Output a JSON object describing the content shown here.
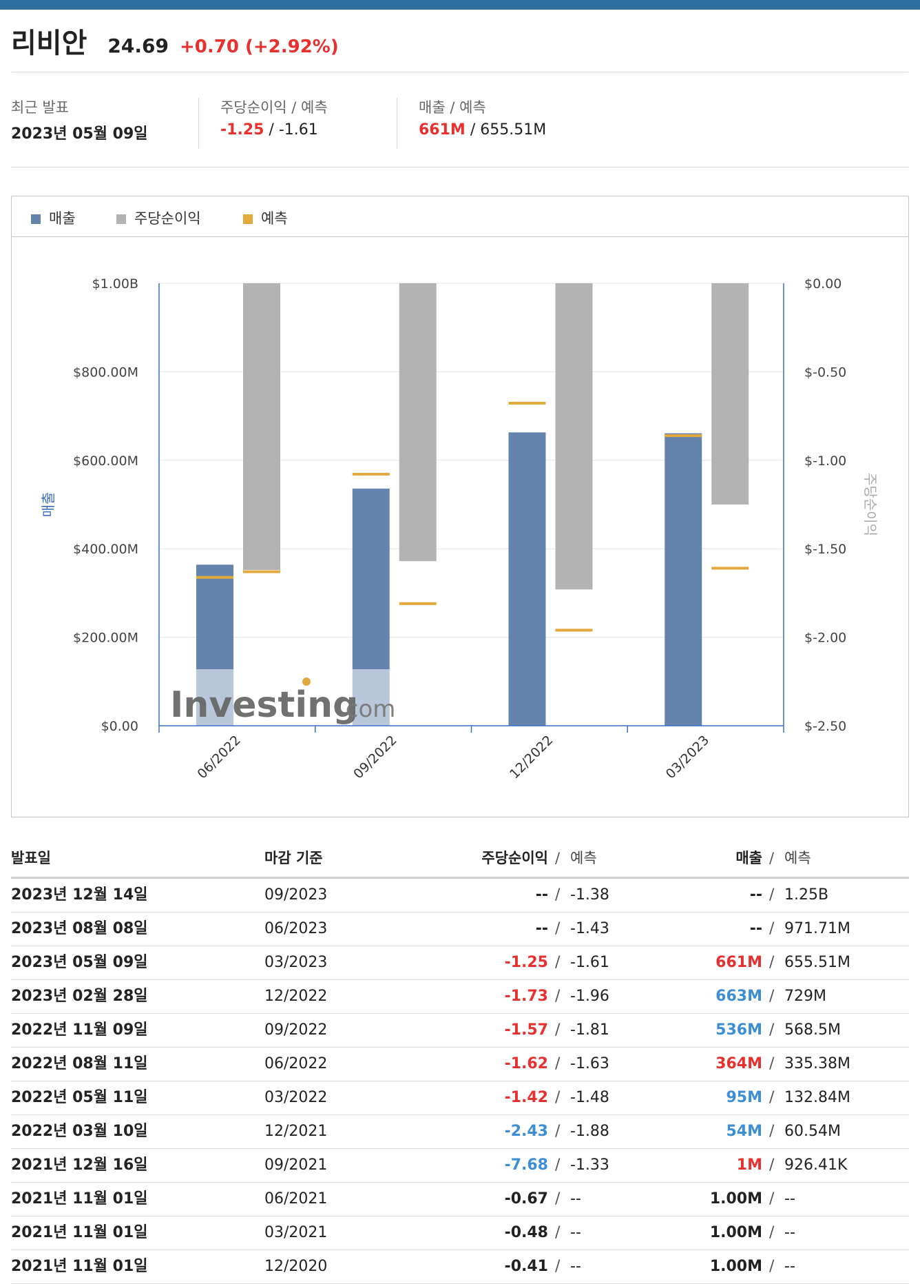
{
  "header": {
    "name": "리비안",
    "price": "24.69",
    "change": "+0.70 (+2.92%)"
  },
  "summary": {
    "latest_label": "최근 발표",
    "latest_value": "2023년 05월 09일",
    "eps_label": "주당순이익 / 예측",
    "eps_actual": "-1.25",
    "eps_forecast": "-1.61",
    "rev_label": "매출 / 예측",
    "rev_actual": "661M",
    "rev_forecast": "655.51M"
  },
  "legend": {
    "revenue": "매출",
    "eps": "주당순이익",
    "forecast": "예측"
  },
  "colors": {
    "revenue": "#6584ad",
    "eps": "#b3b3b3",
    "forecast": "#e3a93d",
    "red": "#e8302e",
    "blue": "#3c8fd6",
    "axis": "#3a6ec0"
  },
  "watermark": {
    "brand": "Investing",
    "suffix": ".com"
  },
  "chart_data": {
    "type": "bar",
    "categories": [
      "06/2022",
      "09/2022",
      "12/2022",
      "03/2023"
    ],
    "series": [
      {
        "name": "매출",
        "axis": "left",
        "values": [
          364,
          536,
          663,
          661
        ],
        "unit": "M"
      },
      {
        "name": "주당순이익",
        "axis": "right",
        "values": [
          -1.62,
          -1.57,
          -1.73,
          -1.25
        ]
      },
      {
        "name": "예측 (매출)",
        "axis": "left",
        "values": [
          335.38,
          568.5,
          729,
          655.51
        ],
        "unit": "M"
      },
      {
        "name": "예측 (주당순이익)",
        "axis": "right",
        "values": [
          -1.63,
          -1.81,
          -1.96,
          -1.61
        ]
      }
    ],
    "ylabel_left": "매출",
    "ylabel_right": "주당순이익",
    "ylim_left": [
      0,
      1000
    ],
    "ylim_right": [
      -2.5,
      0
    ],
    "yticks_left": [
      "$1.00B",
      "$800.00M",
      "$600.00M",
      "$400.00M",
      "$200.00M",
      "$0.00"
    ],
    "yticks_right": [
      "$0.00",
      "$-0.50",
      "$-1.00",
      "$-1.50",
      "$-2.00",
      "$-2.50"
    ]
  },
  "table": {
    "headers": {
      "date": "발표일",
      "period": "마감 기준",
      "eps": "주당순이익",
      "eps_fc": "예측",
      "rev": "매출",
      "rev_fc": "예측"
    },
    "rows": [
      {
        "date": "2023년 12월 14일",
        "period": "09/2023",
        "eps": "--",
        "eps_color": "",
        "eps_fc": "-1.38",
        "rev": "--",
        "rev_color": "",
        "rev_fc": "1.25B"
      },
      {
        "date": "2023년 08월 08일",
        "period": "06/2023",
        "eps": "--",
        "eps_color": "",
        "eps_fc": "-1.43",
        "rev": "--",
        "rev_color": "",
        "rev_fc": "971.71M"
      },
      {
        "date": "2023년 05월 09일",
        "period": "03/2023",
        "eps": "-1.25",
        "eps_color": "red",
        "eps_fc": "-1.61",
        "rev": "661M",
        "rev_color": "red",
        "rev_fc": "655.51M"
      },
      {
        "date": "2023년 02월 28일",
        "period": "12/2022",
        "eps": "-1.73",
        "eps_color": "red",
        "eps_fc": "-1.96",
        "rev": "663M",
        "rev_color": "blue",
        "rev_fc": "729M"
      },
      {
        "date": "2022년 11월 09일",
        "period": "09/2022",
        "eps": "-1.57",
        "eps_color": "red",
        "eps_fc": "-1.81",
        "rev": "536M",
        "rev_color": "blue",
        "rev_fc": "568.5M"
      },
      {
        "date": "2022년 08월 11일",
        "period": "06/2022",
        "eps": "-1.62",
        "eps_color": "red",
        "eps_fc": "-1.63",
        "rev": "364M",
        "rev_color": "red",
        "rev_fc": "335.38M"
      },
      {
        "date": "2022년 05월 11일",
        "period": "03/2022",
        "eps": "-1.42",
        "eps_color": "red",
        "eps_fc": "-1.48",
        "rev": "95M",
        "rev_color": "blue",
        "rev_fc": "132.84M"
      },
      {
        "date": "2022년 03월 10일",
        "period": "12/2021",
        "eps": "-2.43",
        "eps_color": "blue",
        "eps_fc": "-1.88",
        "rev": "54M",
        "rev_color": "blue",
        "rev_fc": "60.54M"
      },
      {
        "date": "2021년 12월 16일",
        "period": "09/2021",
        "eps": "-7.68",
        "eps_color": "blue",
        "eps_fc": "-1.33",
        "rev": "1M",
        "rev_color": "red",
        "rev_fc": "926.41K"
      },
      {
        "date": "2021년 11월 01일",
        "period": "06/2021",
        "eps": "-0.67",
        "eps_color": "",
        "eps_fc": "--",
        "rev": "1.00M",
        "rev_color": "",
        "rev_fc": "--"
      },
      {
        "date": "2021년 11월 01일",
        "period": "03/2021",
        "eps": "-0.48",
        "eps_color": "",
        "eps_fc": "--",
        "rev": "1.00M",
        "rev_color": "",
        "rev_fc": "--"
      },
      {
        "date": "2021년 11월 01일",
        "period": "12/2020",
        "eps": "-0.41",
        "eps_color": "",
        "eps_fc": "--",
        "rev": "1.00M",
        "rev_color": "",
        "rev_fc": "--"
      }
    ]
  }
}
